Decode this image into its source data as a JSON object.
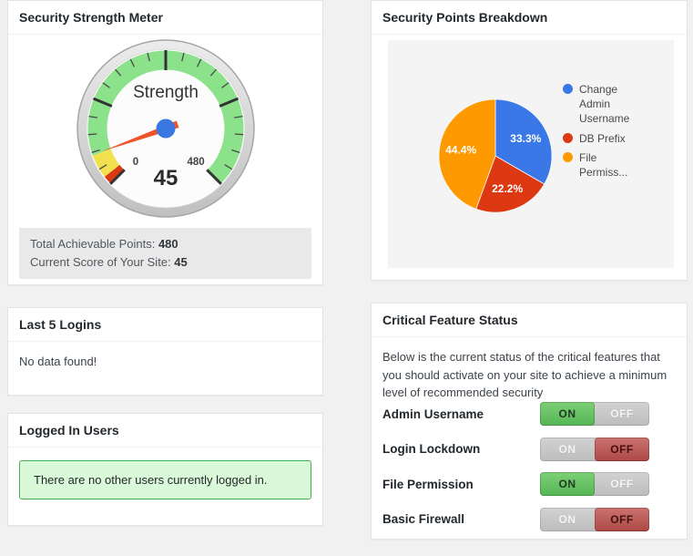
{
  "page": {
    "background": "#f1f1f1"
  },
  "panels": {
    "strength_meter": {
      "title": "Security Strength Meter",
      "summary": {
        "line1_label": "Total Achievable Points:",
        "line1_value": "480",
        "line2_label": "Current Score of Your Site:",
        "line2_value": "45"
      }
    },
    "last_logins": {
      "title": "Last 5 Logins",
      "empty_message": "No data found!"
    },
    "logged_in_users": {
      "title": "Logged In Users",
      "message": "There are no other users currently logged in."
    },
    "points_breakdown": {
      "title": "Security Points Breakdown"
    },
    "critical": {
      "title": "Critical Feature Status",
      "description": "Below is the current status of the critical features that you should activate on your site to achieve a minimum level of recommended security",
      "toggle": {
        "on_label": "ON",
        "off_label": "OFF"
      },
      "features": [
        {
          "label": "Admin Username",
          "state": "on"
        },
        {
          "label": "Login Lockdown",
          "state": "off"
        },
        {
          "label": "File Permission",
          "state": "on"
        },
        {
          "label": "Basic Firewall",
          "state": "off"
        }
      ]
    }
  },
  "chart_data": [
    {
      "type": "gauge",
      "title": "Strength",
      "value": 45,
      "min": 0,
      "max": 480,
      "min_label": "0",
      "max_label": "480",
      "value_label": "45",
      "zones": [
        {
          "from": 0,
          "to": 12,
          "color": "#dc3912"
        },
        {
          "from": 12,
          "to": 44,
          "color": "#f2e04e"
        },
        {
          "from": 44,
          "to": 480,
          "color": "#8be28b"
        }
      ],
      "major_ticks": [
        0,
        120,
        240,
        360,
        480
      ],
      "minor_tick_step": 24,
      "needle_color": "#ee5426",
      "hub_color": "#3b77e0",
      "arc_start_deg": 225,
      "arc_sweep_deg": 270
    },
    {
      "type": "pie",
      "title": "Security Points Breakdown",
      "categories": [
        "Change Admin Username",
        "DB Prefix",
        "File Permiss..."
      ],
      "values": [
        33.3,
        22.2,
        44.4
      ],
      "slice_labels": [
        "33.3%",
        "22.2%",
        "44.4%"
      ],
      "colors": [
        "#3b78e7",
        "#dc3912",
        "#ff9900"
      ],
      "legend_position": "right",
      "start_angle": "top",
      "direction": "clockwise"
    }
  ]
}
